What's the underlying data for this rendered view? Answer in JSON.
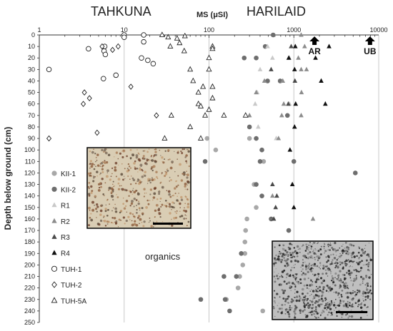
{
  "chart_data": {
    "type": "scatter",
    "title_left": "TAHKUNA",
    "title_right": "HARILAID",
    "xlabel": "MS (μSI)",
    "ylabel": "Depth below ground (cm)",
    "x_scale": "log",
    "xlim": [
      1,
      10000
    ],
    "ylim": [
      0,
      250
    ],
    "y_inverted": true,
    "x_ticks": [
      "1",
      "10",
      "100",
      "1000",
      "10000"
    ],
    "y_ticks": [
      "0",
      "10",
      "20",
      "30",
      "40",
      "50",
      "60",
      "70",
      "80",
      "90",
      "100",
      "110",
      "120",
      "130",
      "140",
      "150",
      "160",
      "170",
      "180",
      "190",
      "200",
      "210",
      "220",
      "230",
      "240",
      "250"
    ],
    "grid": "vertical",
    "legend_placement": "left",
    "annotations": {
      "arrows": [
        {
          "label": "AR",
          "x": 1750,
          "y": 0
        },
        {
          "label": "UB",
          "x": 7900,
          "y": 0
        }
      ],
      "organics": "organics"
    },
    "series": [
      {
        "name": "KII-1",
        "style": {
          "shape": "circle",
          "fill": "#a8a8a8"
        },
        "points": [
          [
            95,
            90
          ],
          [
            300,
            90
          ],
          [
            120,
            100
          ],
          [
            440,
            110
          ],
          [
            340,
            130
          ],
          [
            360,
            150
          ],
          [
            280,
            160
          ],
          [
            270,
            170
          ],
          [
            265,
            180
          ],
          [
            265,
            190
          ],
          [
            250,
            200
          ],
          [
            230,
            210
          ],
          [
            220,
            220
          ],
          [
            160,
            230
          ],
          [
            430,
            240
          ]
        ]
      },
      {
        "name": "KII-2",
        "style": {
          "shape": "circle",
          "fill": "#6e6e6e"
        },
        "points": [
          [
            570,
            0
          ],
          [
            460,
            10
          ],
          [
            260,
            20
          ],
          [
            360,
            20
          ],
          [
            490,
            40
          ],
          [
            690,
            40
          ],
          [
            840,
            70
          ],
          [
            300,
            80
          ],
          [
            360,
            90
          ],
          [
            420,
            100
          ],
          [
            400,
            110
          ],
          [
            90,
            110
          ],
          [
            1000,
            110
          ],
          [
            5300,
            120
          ],
          [
            360,
            130
          ],
          [
            420,
            140
          ],
          [
            540,
            160
          ],
          [
            870,
            170
          ],
          [
            150,
            210
          ],
          [
            155,
            230
          ],
          [
            175,
            240
          ],
          [
            80,
            230
          ],
          [
            210,
            210
          ],
          [
            240,
            190
          ]
        ]
      },
      {
        "name": "R1",
        "style": {
          "shape": "triangle",
          "fill": "#c9c9c9"
        },
        "points": [
          [
            490,
            10
          ],
          [
            560,
            20
          ],
          [
            400,
            30
          ],
          [
            370,
            50
          ],
          [
            350,
            60
          ],
          [
            380,
            80
          ],
          [
            620,
            90
          ],
          [
            890,
            60
          ]
        ]
      },
      {
        "name": "R2",
        "style": {
          "shape": "triangle",
          "fill": "#8c8c8c"
        },
        "points": [
          [
            1220,
            0
          ],
          [
            1340,
            10
          ],
          [
            880,
            20
          ],
          [
            1130,
            20
          ],
          [
            1220,
            30
          ],
          [
            1410,
            30
          ],
          [
            740,
            40
          ],
          [
            450,
            40
          ],
          [
            1230,
            50
          ],
          [
            360,
            50
          ],
          [
            760,
            60
          ],
          [
            720,
            70
          ],
          [
            300,
            70
          ],
          [
            560,
            140
          ],
          [
            1680,
            160
          ],
          [
            660,
            90
          ],
          [
            1220,
            70
          ]
        ]
      },
      {
        "name": "R3",
        "style": {
          "shape": "triangle",
          "fill": "#4a4a4a"
        },
        "points": [
          [
            560,
            130
          ],
          [
            630,
            140
          ],
          [
            580,
            160
          ],
          [
            610,
            150
          ],
          [
            930,
            10
          ],
          [
            1030,
            40
          ],
          [
            860,
            60
          ],
          [
            540,
            30
          ]
        ]
      },
      {
        "name": "R4",
        "style": {
          "shape": "triangle",
          "fill": "#111111"
        },
        "points": [
          [
            2600,
            10
          ],
          [
            1040,
            10
          ],
          [
            1020,
            30
          ],
          [
            1050,
            60
          ],
          [
            1020,
            80
          ],
          [
            900,
            100
          ],
          [
            960,
            130
          ],
          [
            1000,
            150
          ],
          [
            2100,
            40
          ],
          [
            2350,
            60
          ],
          [
            870,
            20
          ],
          [
            1800,
            20
          ]
        ]
      },
      {
        "name": "TUH-1",
        "style": {
          "shape": "circle",
          "fill": "none"
        },
        "points": [
          [
            10,
            0
          ],
          [
            10,
            2
          ],
          [
            17,
            0
          ],
          [
            17,
            6
          ],
          [
            5.9,
            10
          ],
          [
            5.8,
            14
          ],
          [
            6.0,
            17
          ],
          [
            3.8,
            12
          ],
          [
            16,
            20
          ],
          [
            19,
            22
          ],
          [
            22,
            25
          ],
          [
            5.7,
            38
          ],
          [
            8.0,
            35
          ],
          [
            1.3,
            30
          ]
        ]
      },
      {
        "name": "TUH-2",
        "style": {
          "shape": "diamond",
          "fill": "none"
        },
        "points": [
          [
            3.4,
            50
          ],
          [
            3.9,
            55
          ],
          [
            3.3,
            60
          ],
          [
            12,
            45
          ],
          [
            5.5,
            10
          ],
          [
            7.3,
            13
          ],
          [
            24,
            70
          ],
          [
            4.8,
            85
          ],
          [
            1.3,
            90
          ],
          [
            8.5,
            10
          ]
        ]
      },
      {
        "name": "TUH-5A",
        "style": {
          "shape": "triangle",
          "fill": "none"
        },
        "points": [
          [
            28,
            0
          ],
          [
            33,
            2
          ],
          [
            42,
            3
          ],
          [
            52,
            1
          ],
          [
            45,
            7
          ],
          [
            35,
            10
          ],
          [
            51,
            14
          ],
          [
            110,
            10
          ],
          [
            100,
            20
          ],
          [
            60,
            30
          ],
          [
            65,
            40
          ],
          [
            75,
            50
          ],
          [
            75,
            60
          ],
          [
            85,
            45
          ],
          [
            110,
            45
          ],
          [
            100,
            30
          ],
          [
            110,
            55
          ],
          [
            100,
            65
          ],
          [
            80,
            62
          ],
          [
            36,
            70
          ],
          [
            60,
            80
          ],
          [
            30,
            90
          ],
          [
            80,
            90
          ],
          [
            270,
            70
          ],
          [
            150,
            70
          ],
          [
            90,
            70
          ],
          [
            110,
            12
          ]
        ]
      }
    ]
  }
}
